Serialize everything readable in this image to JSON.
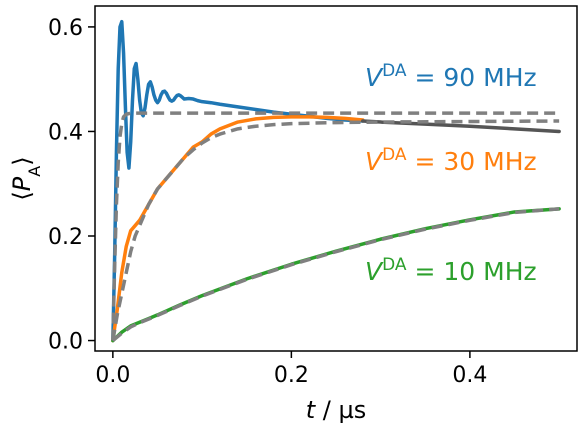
{
  "chart_data": {
    "type": "line",
    "title": "",
    "xlabel_var": "t",
    "xlabel_unit": " / µs",
    "ylabel_var": "P",
    "ylabel_sub": "A",
    "xlim": [
      -0.02,
      0.52
    ],
    "ylim": [
      -0.02,
      0.64
    ],
    "xticks": [
      0.0,
      0.2,
      0.4
    ],
    "xtick_labels": [
      "0.0",
      "0.2",
      "0.4"
    ],
    "yticks": [
      0.0,
      0.2,
      0.4,
      0.6
    ],
    "ytick_labels": [
      "0.0",
      "0.2",
      "0.4",
      "0.6"
    ],
    "grid": false,
    "series": [
      {
        "style": "solid",
        "color": "#1f77b4",
        "x": [
          0,
          0.002,
          0.004,
          0.006,
          0.008,
          0.01,
          0.012,
          0.014,
          0.016,
          0.018,
          0.02,
          0.022,
          0.024,
          0.026,
          0.028,
          0.03,
          0.032,
          0.034,
          0.036,
          0.038,
          0.04,
          0.042,
          0.044,
          0.046,
          0.048,
          0.05,
          0.052,
          0.054,
          0.056,
          0.058,
          0.06,
          0.062,
          0.064,
          0.066,
          0.068,
          0.07,
          0.072,
          0.074,
          0.076,
          0.078,
          0.08,
          0.085,
          0.09,
          0.095,
          0.1,
          0.11,
          0.12,
          0.14,
          0.16,
          0.18,
          0.2,
          0.22,
          0.24,
          0.26,
          0.28
        ],
        "y": [
          0,
          0.16,
          0.36,
          0.52,
          0.6,
          0.61,
          0.55,
          0.45,
          0.36,
          0.33,
          0.38,
          0.46,
          0.52,
          0.53,
          0.5,
          0.46,
          0.435,
          0.43,
          0.445,
          0.47,
          0.49,
          0.495,
          0.485,
          0.47,
          0.46,
          0.455,
          0.46,
          0.47,
          0.476,
          0.477,
          0.473,
          0.466,
          0.46,
          0.458,
          0.46,
          0.465,
          0.469,
          0.47,
          0.468,
          0.465,
          0.462,
          0.463,
          0.462,
          0.459,
          0.457,
          0.455,
          0.452,
          0.447,
          0.442,
          0.437,
          0.433,
          0.429,
          0.425,
          0.422,
          0.42
        ]
      },
      {
        "style": "solid",
        "color": "#ff7f0e",
        "x": [
          0,
          0.005,
          0.01,
          0.015,
          0.02,
          0.025,
          0.03,
          0.04,
          0.05,
          0.06,
          0.07,
          0.08,
          0.09,
          0.1,
          0.11,
          0.12,
          0.14,
          0.16,
          0.18,
          0.2,
          0.22,
          0.24,
          0.26,
          0.28
        ],
        "y": [
          0,
          0.06,
          0.13,
          0.18,
          0.21,
          0.22,
          0.23,
          0.26,
          0.29,
          0.31,
          0.33,
          0.35,
          0.37,
          0.38,
          0.395,
          0.405,
          0.418,
          0.424,
          0.427,
          0.428,
          0.428,
          0.427,
          0.425,
          0.422
        ]
      },
      {
        "style": "solid",
        "color": "#555555",
        "x": [
          0.28,
          0.3,
          0.35,
          0.4,
          0.45,
          0.5
        ],
        "y": [
          0.42,
          0.418,
          0.414,
          0.41,
          0.405,
          0.4
        ]
      },
      {
        "style": "solid",
        "color": "#2ca02c",
        "x": [
          0,
          0.005,
          0.01,
          0.015,
          0.02,
          0.03,
          0.04,
          0.05,
          0.075,
          0.1,
          0.15,
          0.2,
          0.25,
          0.3,
          0.35,
          0.4,
          0.45,
          0.5
        ],
        "y": [
          0,
          0.008,
          0.016,
          0.022,
          0.028,
          0.035,
          0.042,
          0.049,
          0.068,
          0.086,
          0.118,
          0.146,
          0.171,
          0.194,
          0.214,
          0.231,
          0.246,
          0.252
        ]
      },
      {
        "style": "dashed",
        "color": "#808080",
        "x": [
          0,
          0.002,
          0.004,
          0.006,
          0.008,
          0.01,
          0.012,
          0.015,
          0.02,
          0.03,
          0.05,
          0.1,
          0.2,
          0.3,
          0.4,
          0.5
        ],
        "y": [
          0,
          0.14,
          0.26,
          0.34,
          0.39,
          0.415,
          0.428,
          0.433,
          0.435,
          0.435,
          0.435,
          0.435,
          0.435,
          0.435,
          0.435,
          0.435
        ]
      },
      {
        "style": "dashed",
        "color": "#808080",
        "x": [
          0,
          0.005,
          0.01,
          0.015,
          0.02,
          0.025,
          0.03,
          0.04,
          0.05,
          0.06,
          0.07,
          0.08,
          0.09,
          0.1,
          0.11,
          0.12,
          0.14,
          0.16,
          0.18,
          0.2,
          0.25,
          0.3,
          0.4,
          0.5
        ],
        "y": [
          0,
          0.05,
          0.09,
          0.13,
          0.17,
          0.2,
          0.22,
          0.26,
          0.29,
          0.31,
          0.33,
          0.35,
          0.365,
          0.378,
          0.388,
          0.395,
          0.405,
          0.41,
          0.413,
          0.415,
          0.417,
          0.418,
          0.419,
          0.42
        ]
      },
      {
        "style": "dashed",
        "color": "#808080",
        "x": [
          0,
          0.005,
          0.01,
          0.015,
          0.02,
          0.03,
          0.04,
          0.05,
          0.075,
          0.1,
          0.15,
          0.2,
          0.25,
          0.3,
          0.35,
          0.4,
          0.45,
          0.5
        ],
        "y": [
          0,
          0.007,
          0.014,
          0.02,
          0.026,
          0.034,
          0.041,
          0.048,
          0.067,
          0.085,
          0.117,
          0.145,
          0.17,
          0.193,
          0.213,
          0.23,
          0.245,
          0.252
        ]
      }
    ],
    "annotations": [
      {
        "var": "V",
        "sup": "DA",
        "text": " = 90 MHz",
        "color": "#1f77b4"
      },
      {
        "var": "V",
        "sup": "DA",
        "text": " = 30 MHz",
        "color": "#ff7f0e"
      },
      {
        "var": "V",
        "sup": "DA",
        "text": " = 10 MHz",
        "color": "#2ca02c"
      }
    ]
  }
}
